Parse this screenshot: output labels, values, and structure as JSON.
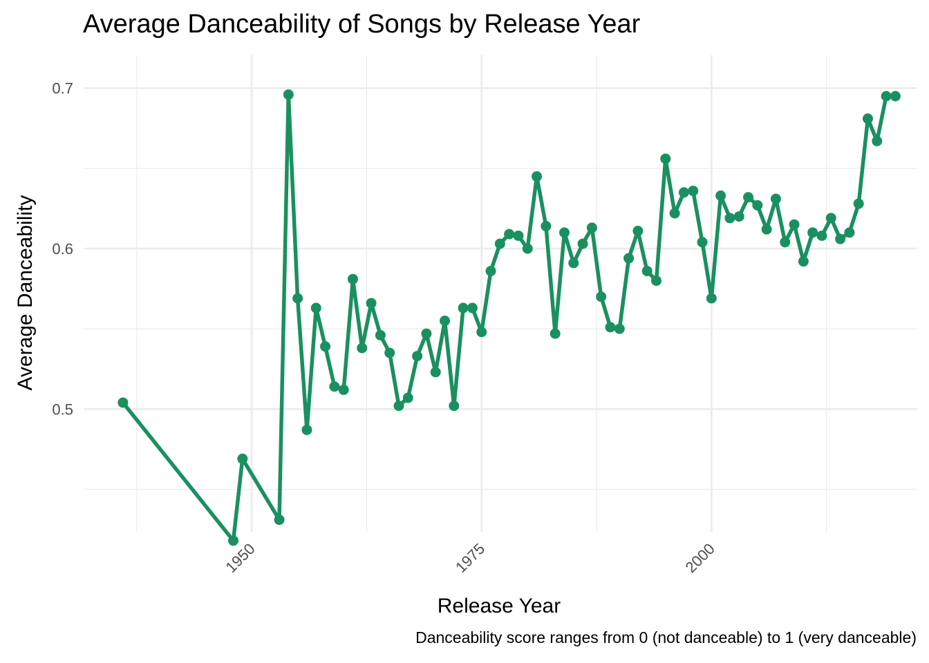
{
  "title": "Average Danceability of Songs by Release Year",
  "caption": "Danceability score ranges from 0 (not danceable) to 1 (very danceable)",
  "colors": {
    "line": "#1a9060",
    "grid": "#ebebeb"
  },
  "chart_data": {
    "type": "line",
    "title": "Average Danceability of Songs by Release Year",
    "xlabel": "Release Year",
    "ylabel": "Average Danceability",
    "caption": "Danceability score ranges from 0 (not danceable) to 1 (very danceable)",
    "xlim": [
      1931.8,
      2022.3
    ],
    "ylim": [
      0.4235,
      0.7205
    ],
    "x_ticks": [
      1950,
      1975,
      2000
    ],
    "x_tick_labels": [
      "1950",
      "1975",
      "2000"
    ],
    "y_ticks": [
      0.5,
      0.6,
      0.7
    ],
    "y_tick_labels": [
      "0.5",
      "0.6",
      "0.7"
    ],
    "grid": true,
    "legend": "none",
    "series": [
      {
        "color": "#1a9060",
        "x": [
          1936,
          1948,
          1949,
          1953,
          1954,
          1955,
          1956,
          1957,
          1958,
          1959,
          1960,
          1961,
          1962,
          1963,
          1964,
          1965,
          1966,
          1967,
          1968,
          1969,
          1970,
          1971,
          1972,
          1973,
          1974,
          1975,
          1976,
          1977,
          1978,
          1979,
          1980,
          1981,
          1982,
          1983,
          1984,
          1985,
          1986,
          1987,
          1988,
          1989,
          1990,
          1991,
          1992,
          1993,
          1994,
          1995,
          1996,
          1997,
          1998,
          1999,
          2000,
          2001,
          2002,
          2003,
          2004,
          2005,
          2006,
          2007,
          2008,
          2009,
          2010,
          2011,
          2012,
          2013,
          2014,
          2015,
          2016,
          2017,
          2018,
          2019,
          2020
        ],
        "y": [
          0.504,
          0.418,
          0.469,
          0.431,
          0.696,
          0.569,
          0.487,
          0.563,
          0.539,
          0.514,
          0.512,
          0.581,
          0.538,
          0.566,
          0.546,
          0.535,
          0.502,
          0.507,
          0.533,
          0.547,
          0.523,
          0.555,
          0.502,
          0.563,
          0.563,
          0.548,
          0.586,
          0.603,
          0.609,
          0.608,
          0.6,
          0.645,
          0.614,
          0.547,
          0.61,
          0.591,
          0.603,
          0.613,
          0.57,
          0.551,
          0.55,
          0.594,
          0.611,
          0.586,
          0.58,
          0.656,
          0.622,
          0.635,
          0.636,
          0.604,
          0.569,
          0.633,
          0.619,
          0.62,
          0.632,
          0.627,
          0.612,
          0.631,
          0.604,
          0.615,
          0.592,
          0.61,
          0.608,
          0.619,
          0.606,
          0.61,
          0.628,
          0.681,
          0.667,
          0.695,
          0.695
        ]
      }
    ]
  }
}
